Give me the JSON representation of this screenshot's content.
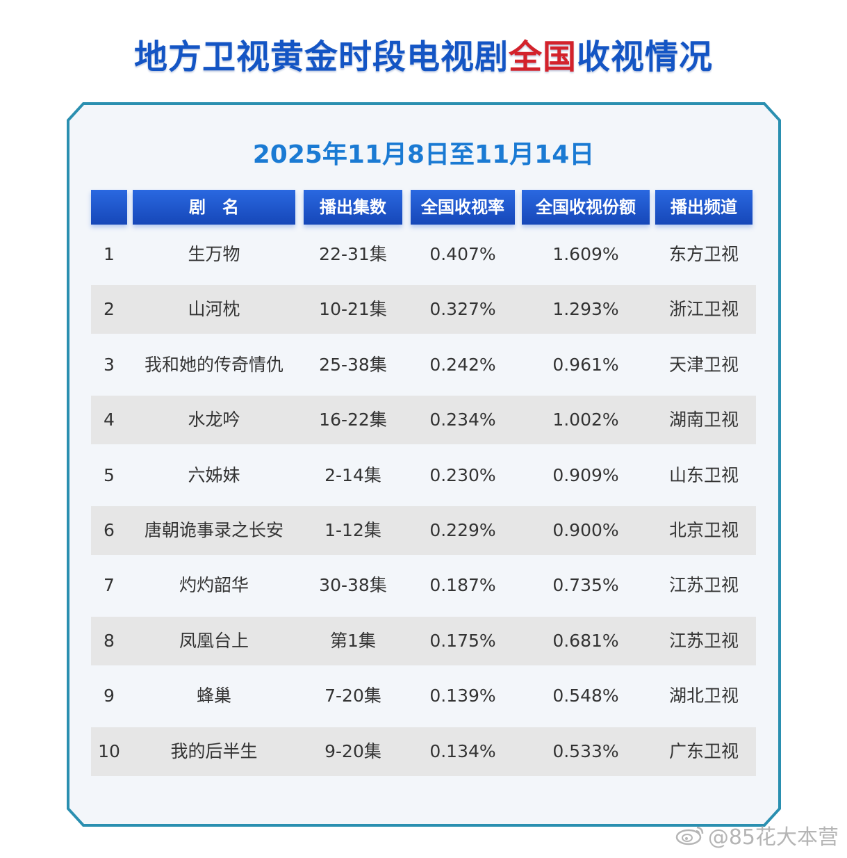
{
  "title": {
    "part1": "地方卫视黄金时段电视剧",
    "highlight": "全国",
    "part2": "收视情况"
  },
  "date_range": "2025年11月8日至11月14日",
  "headers": {
    "rank": "",
    "name": "剧　名",
    "episodes": "播出集数",
    "rating": "全国收视率",
    "share": "全国收视份额",
    "channel": "播出频道"
  },
  "rows": [
    {
      "rank": "1",
      "name": "生万物",
      "episodes": "22-31集",
      "rating": "0.407%",
      "share": "1.609%",
      "channel": "东方卫视"
    },
    {
      "rank": "2",
      "name": "山河枕",
      "episodes": "10-21集",
      "rating": "0.327%",
      "share": "1.293%",
      "channel": "浙江卫视"
    },
    {
      "rank": "3",
      "name": "我和她的传奇情仇",
      "episodes": "25-38集",
      "rating": "0.242%",
      "share": "0.961%",
      "channel": "天津卫视"
    },
    {
      "rank": "4",
      "name": "水龙吟",
      "episodes": "16-22集",
      "rating": "0.234%",
      "share": "1.002%",
      "channel": "湖南卫视"
    },
    {
      "rank": "5",
      "name": "六姊妹",
      "episodes": "2-14集",
      "rating": "0.230%",
      "share": "0.909%",
      "channel": "山东卫视"
    },
    {
      "rank": "6",
      "name": "唐朝诡事录之长安",
      "episodes": "1-12集",
      "rating": "0.229%",
      "share": "0.900%",
      "channel": "北京卫视"
    },
    {
      "rank": "7",
      "name": "灼灼韶华",
      "episodes": "30-38集",
      "rating": "0.187%",
      "share": "0.735%",
      "channel": "江苏卫视"
    },
    {
      "rank": "8",
      "name": "凤凰台上",
      "episodes": "第1集",
      "rating": "0.175%",
      "share": "0.681%",
      "channel": "江苏卫视"
    },
    {
      "rank": "9",
      "name": "蜂巢",
      "episodes": "7-20集",
      "rating": "0.139%",
      "share": "0.548%",
      "channel": "湖北卫视"
    },
    {
      "rank": "10",
      "name": "我的后半生",
      "episodes": "9-20集",
      "rating": "0.134%",
      "share": "0.533%",
      "channel": "广东卫视"
    }
  ],
  "watermark": "@85花大本营",
  "colors": {
    "title_blue": "#1455c4",
    "title_red": "#d3222b",
    "date_blue": "#1a7ad3",
    "header_blue": "#1e58cc",
    "frame_teal": "#2a8fb0",
    "row_shade": "#e6e6e6"
  }
}
